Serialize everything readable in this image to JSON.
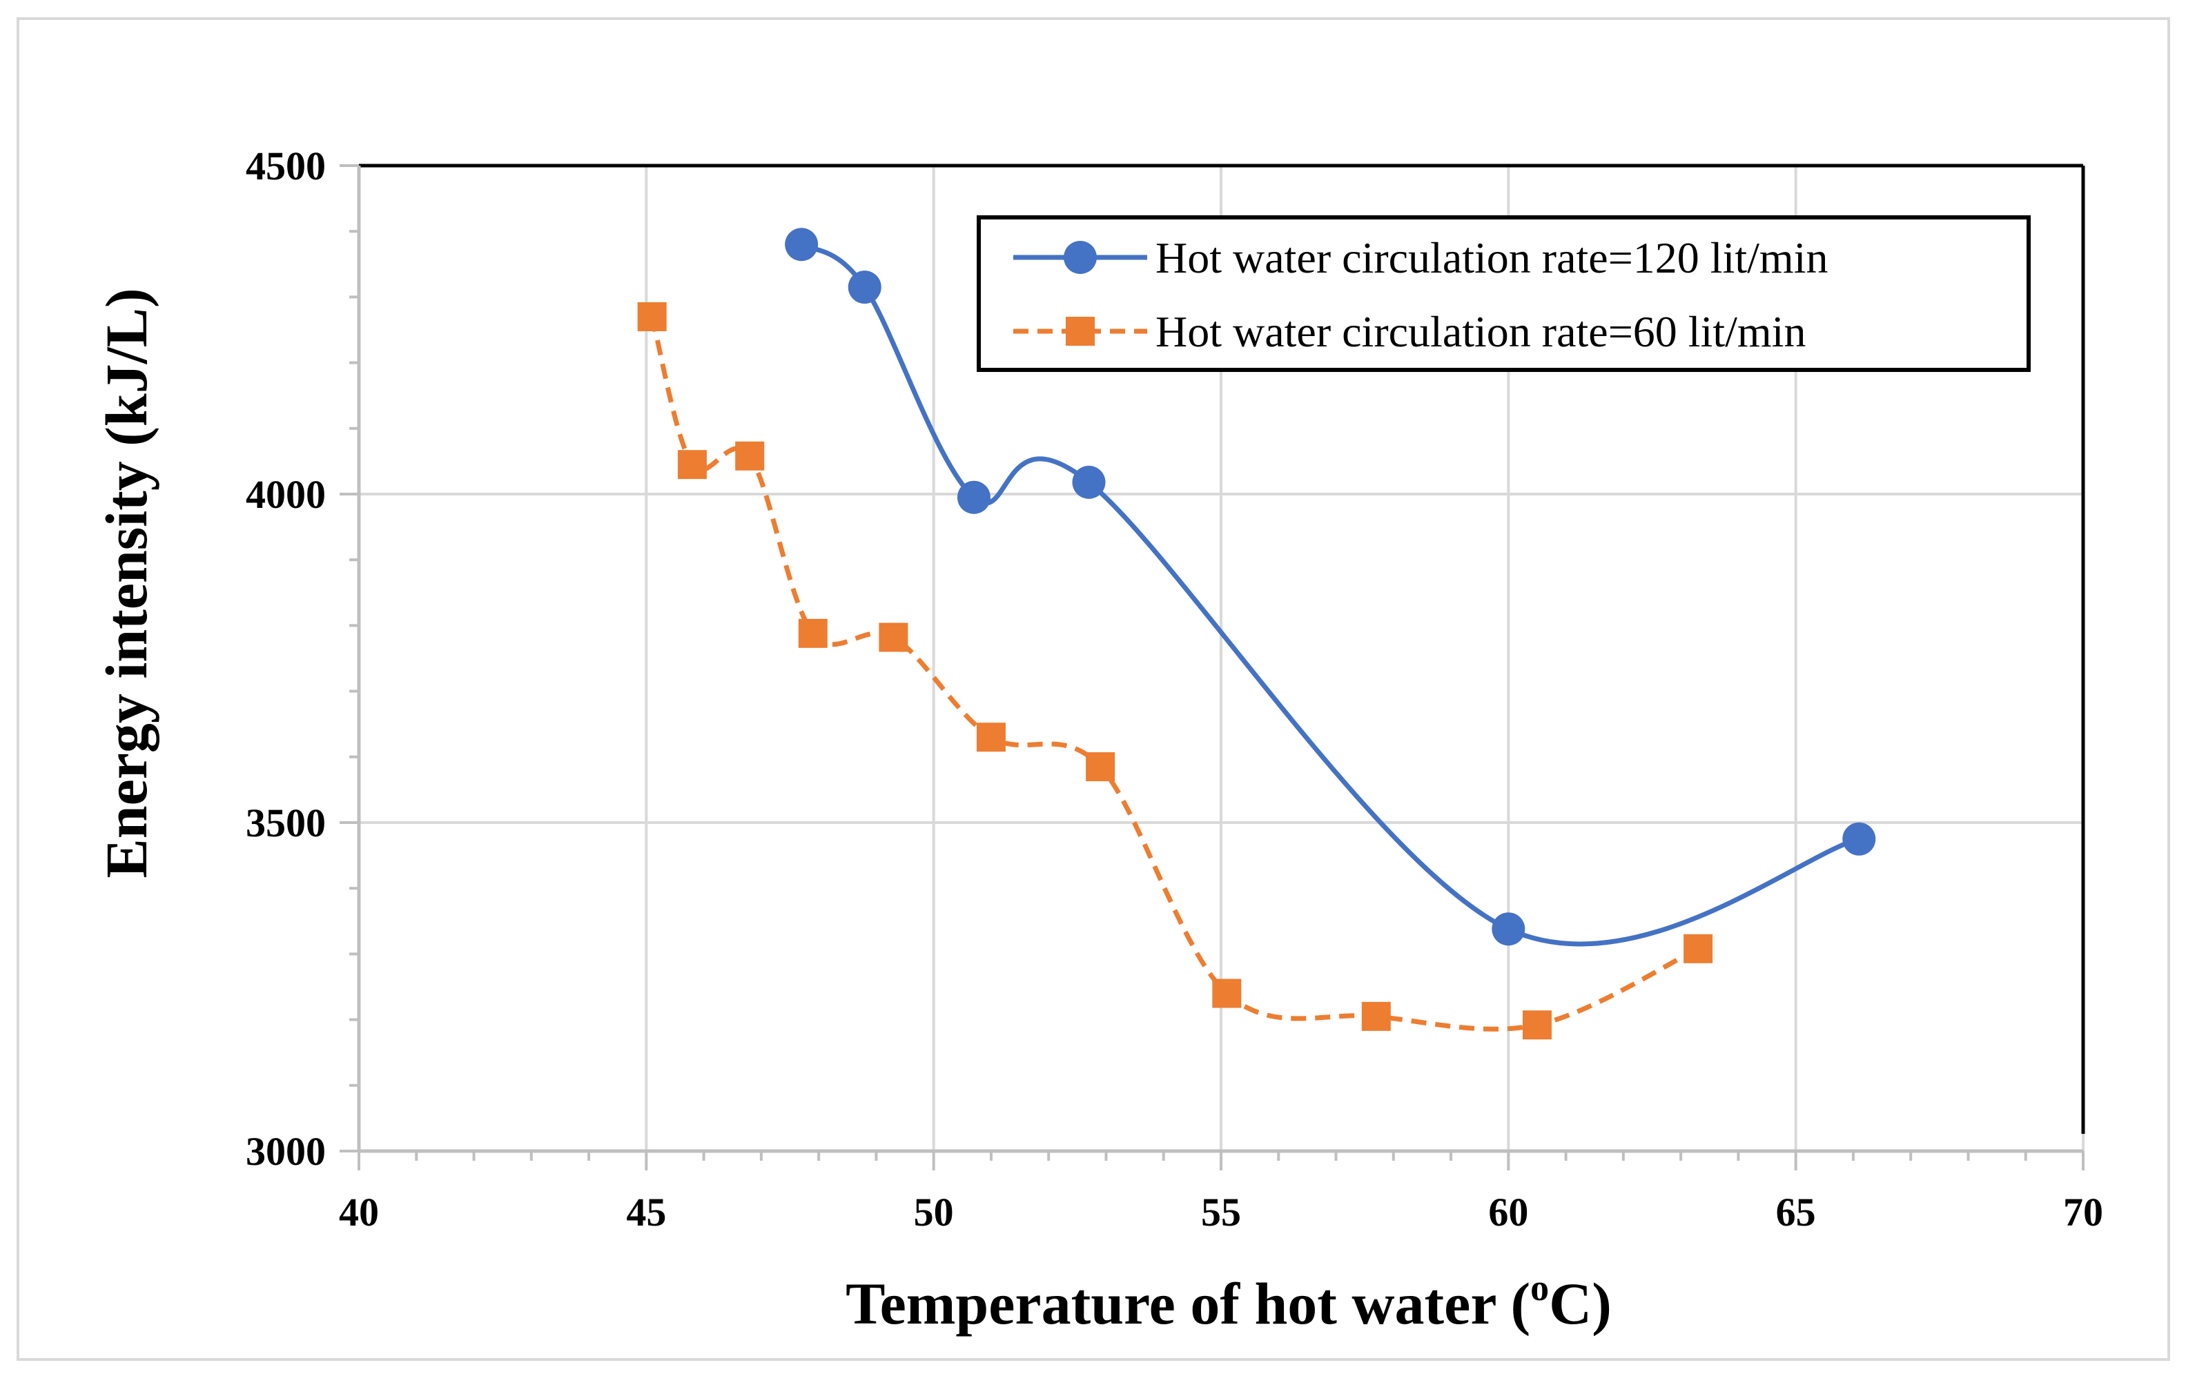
{
  "chart_data": {
    "type": "line",
    "title": "",
    "xlabel": "Temperature of hot water (°C)",
    "xlabel_main": "Temperature of hot water (",
    "xlabel_sup": "o",
    "xlabel_tail": "C)",
    "ylabel": "Energy intensity (kJ/L)",
    "xlim": [
      40,
      70
    ],
    "ylim": [
      3000,
      4500
    ],
    "x_ticks": [
      40,
      45,
      50,
      55,
      60,
      65,
      70
    ],
    "x_tick_labels": [
      "40",
      "45",
      "50",
      "55",
      "60",
      "65",
      "70"
    ],
    "y_ticks": [
      3000,
      3500,
      4000,
      4500
    ],
    "y_tick_labels": [
      "3000",
      "3500",
      "4000",
      "4500"
    ],
    "x_minor_step": 1,
    "y_minor_step": 100,
    "grid": true,
    "legend_position": "top-right",
    "series": [
      {
        "name": "Hot water circulation rate=120 lit/min",
        "color": "#4472C4",
        "marker": "circle",
        "line_style": "solid",
        "x": [
          47.7,
          48.8,
          50.7,
          52.7,
          60.0,
          66.1
        ],
        "y": [
          4380,
          4315,
          3995,
          4018,
          3338,
          3475
        ]
      },
      {
        "name": "Hot water circulation rate=60 lit/min",
        "color": "#ED7D31",
        "marker": "square",
        "line_style": "dashed",
        "x": [
          45.1,
          45.8,
          46.8,
          47.9,
          49.3,
          51.0,
          52.9,
          55.1,
          57.7,
          60.5,
          63.3
        ],
        "y": [
          4270,
          4045,
          4058,
          3788,
          3782,
          3630,
          3585,
          3240,
          3205,
          3192,
          3308
        ]
      }
    ]
  }
}
